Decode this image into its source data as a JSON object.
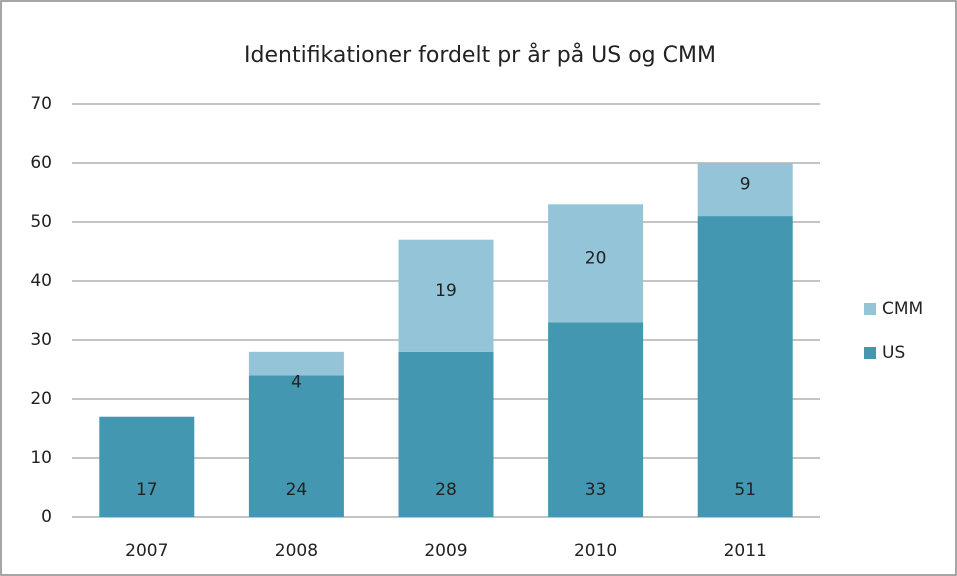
{
  "chart_data": {
    "type": "stacked_bar",
    "title": "Identifikationer fordelt pr år på US og CMM",
    "categories": [
      "2007",
      "2008",
      "2009",
      "2010",
      "2011"
    ],
    "series": [
      {
        "name": "US",
        "color": "#4397b0",
        "values": [
          17,
          24,
          28,
          33,
          51
        ]
      },
      {
        "name": "CMM",
        "color": "#93c4d7",
        "values": [
          null,
          4,
          19,
          20,
          9
        ]
      }
    ],
    "ylim": [
      0,
      70
    ],
    "yticks": [
      0,
      10,
      20,
      30,
      40,
      50,
      60,
      70
    ],
    "grid": true,
    "legend": "right"
  }
}
